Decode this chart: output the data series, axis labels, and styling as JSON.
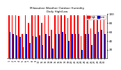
{
  "title": "Milwaukee Weather Outdoor Humidity",
  "subtitle": "Daily High/Low",
  "legend_high": "High",
  "legend_low": "Low",
  "color_high": "#ff0000",
  "color_low": "#0000cc",
  "background_color": "#ffffff",
  "ylim": [
    0,
    100
  ],
  "ylabel_ticks": [
    20,
    40,
    60,
    80,
    100
  ],
  "bar_width": 0.35,
  "highs": [
    97,
    97,
    97,
    96,
    55,
    97,
    79,
    97,
    97,
    97,
    80,
    97,
    97,
    65,
    97,
    97,
    97,
    97,
    91,
    97,
    97,
    97,
    50,
    97,
    97,
    68,
    97,
    97,
    97,
    97
  ],
  "lows": [
    60,
    55,
    52,
    48,
    25,
    55,
    35,
    50,
    48,
    52,
    30,
    55,
    50,
    22,
    55,
    55,
    60,
    55,
    40,
    55,
    55,
    55,
    20,
    55,
    55,
    30,
    55,
    60,
    65,
    55
  ],
  "x_labels": [
    "1",
    "2",
    "3",
    "4",
    "5",
    "6",
    "7",
    "8",
    "9",
    "10",
    "11",
    "12",
    "13",
    "14",
    "15",
    "16",
    "17",
    "18",
    "19",
    "20",
    "21",
    "22",
    "23",
    "24",
    "25",
    "26",
    "27",
    "28",
    "29",
    "30"
  ]
}
